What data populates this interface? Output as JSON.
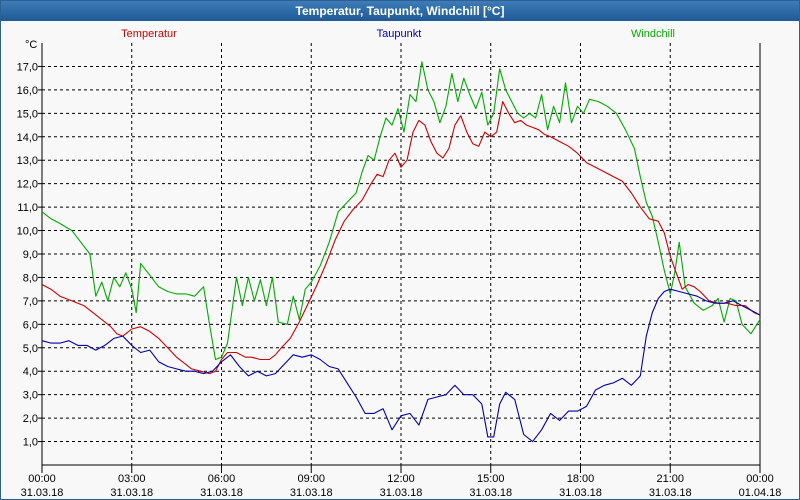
{
  "window": {
    "title": "Temperatur, Taupunkt, Windchill [°C]"
  },
  "chart_data": {
    "type": "line",
    "title": "Temperatur, Taupunkt, Windchill [°C]",
    "ylabel": "°C",
    "ylim": [
      0,
      18
    ],
    "y_ticks": [
      "1,0",
      "2,0",
      "3,0",
      "4,0",
      "5,0",
      "6,0",
      "7,0",
      "8,0",
      "9,0",
      "10,0",
      "11,0",
      "12,0",
      "13,0",
      "14,0",
      "15,0",
      "16,0",
      "17,0"
    ],
    "x_ticks": [
      {
        "time": "00:00",
        "date": "31.03.18"
      },
      {
        "time": "03:00",
        "date": "31.03.18"
      },
      {
        "time": "06:00",
        "date": "31.03.18"
      },
      {
        "time": "09:00",
        "date": "31.03.18"
      },
      {
        "time": "12:00",
        "date": "31.03.18"
      },
      {
        "time": "15:00",
        "date": "31.03.18"
      },
      {
        "time": "18:00",
        "date": "31.03.18"
      },
      {
        "time": "21:00",
        "date": "31.03.18"
      },
      {
        "time": "00:00",
        "date": "01.04.18"
      }
    ],
    "grid": true,
    "x_unit": "hours",
    "series": [
      {
        "name": "Temperatur",
        "color": "#cc0000",
        "points": [
          [
            0,
            7.7
          ],
          [
            0.3,
            7.5
          ],
          [
            0.6,
            7.2
          ],
          [
            1,
            7.0
          ],
          [
            1.4,
            6.8
          ],
          [
            1.7,
            6.5
          ],
          [
            2,
            6.2
          ],
          [
            2.3,
            5.9
          ],
          [
            2.5,
            5.6
          ],
          [
            2.7,
            5.5
          ],
          [
            3,
            5.8
          ],
          [
            3.3,
            5.9
          ],
          [
            3.6,
            5.7
          ],
          [
            3.9,
            5.4
          ],
          [
            4.2,
            5.0
          ],
          [
            4.5,
            4.6
          ],
          [
            4.8,
            4.3
          ],
          [
            5,
            4.1
          ],
          [
            5.3,
            4.0
          ],
          [
            5.6,
            3.9
          ],
          [
            5.8,
            4.0
          ],
          [
            6,
            4.5
          ],
          [
            6.2,
            4.8
          ],
          [
            6.5,
            4.8
          ],
          [
            6.8,
            4.6
          ],
          [
            7,
            4.6
          ],
          [
            7.3,
            4.5
          ],
          [
            7.6,
            4.5
          ],
          [
            7.8,
            4.7
          ],
          [
            8,
            5.0
          ],
          [
            8.3,
            5.4
          ],
          [
            8.6,
            6.1
          ],
          [
            8.9,
            6.9
          ],
          [
            9.2,
            7.7
          ],
          [
            9.5,
            8.6
          ],
          [
            9.8,
            9.6
          ],
          [
            10.1,
            10.4
          ],
          [
            10.4,
            10.9
          ],
          [
            10.7,
            11.3
          ],
          [
            11,
            12.0
          ],
          [
            11.2,
            12.4
          ],
          [
            11.4,
            12.3
          ],
          [
            11.6,
            13.0
          ],
          [
            11.8,
            13.3
          ],
          [
            12,
            12.7
          ],
          [
            12.2,
            13.0
          ],
          [
            12.4,
            14.2
          ],
          [
            12.6,
            14.7
          ],
          [
            12.8,
            14.5
          ],
          [
            13,
            13.8
          ],
          [
            13.2,
            13.3
          ],
          [
            13.4,
            13.1
          ],
          [
            13.6,
            13.5
          ],
          [
            13.8,
            14.5
          ],
          [
            14,
            14.9
          ],
          [
            14.2,
            14.2
          ],
          [
            14.4,
            13.7
          ],
          [
            14.6,
            13.6
          ],
          [
            14.8,
            14.2
          ],
          [
            15,
            14.0
          ],
          [
            15.2,
            14.2
          ],
          [
            15.4,
            15.5
          ],
          [
            15.6,
            15.0
          ],
          [
            15.8,
            14.6
          ],
          [
            16,
            14.7
          ],
          [
            16.2,
            14.5
          ],
          [
            16.4,
            14.4
          ],
          [
            16.6,
            14.3
          ],
          [
            16.8,
            14.1
          ],
          [
            17,
            14.0
          ],
          [
            17.3,
            13.8
          ],
          [
            17.6,
            13.6
          ],
          [
            17.9,
            13.3
          ],
          [
            18.2,
            12.9
          ],
          [
            18.5,
            12.7
          ],
          [
            18.8,
            12.5
          ],
          [
            19.1,
            12.3
          ],
          [
            19.4,
            12.1
          ],
          [
            19.7,
            11.6
          ],
          [
            20,
            11.0
          ],
          [
            20.3,
            10.5
          ],
          [
            20.6,
            10.4
          ],
          [
            20.8,
            9.9
          ],
          [
            21,
            8.9
          ],
          [
            21.2,
            8.2
          ],
          [
            21.4,
            7.5
          ],
          [
            21.6,
            7.7
          ],
          [
            21.8,
            7.6
          ],
          [
            22,
            7.4
          ],
          [
            22.3,
            7.0
          ],
          [
            22.6,
            6.9
          ],
          [
            22.9,
            6.9
          ],
          [
            23.2,
            6.8
          ],
          [
            23.5,
            6.8
          ],
          [
            23.8,
            6.5
          ],
          [
            24,
            6.4
          ]
        ]
      },
      {
        "name": "Taupunkt",
        "color": "#0000aa",
        "points": [
          [
            0,
            5.3
          ],
          [
            0.3,
            5.2
          ],
          [
            0.6,
            5.2
          ],
          [
            0.9,
            5.3
          ],
          [
            1.2,
            5.1
          ],
          [
            1.5,
            5.1
          ],
          [
            1.8,
            4.9
          ],
          [
            2.1,
            5.1
          ],
          [
            2.4,
            5.4
          ],
          [
            2.7,
            5.5
          ],
          [
            3,
            5.1
          ],
          [
            3.3,
            4.8
          ],
          [
            3.6,
            4.9
          ],
          [
            3.9,
            4.4
          ],
          [
            4.2,
            4.2
          ],
          [
            4.5,
            4.1
          ],
          [
            4.8,
            4.0
          ],
          [
            5.1,
            4.0
          ],
          [
            5.4,
            3.9
          ],
          [
            5.7,
            4.0
          ],
          [
            6,
            4.4
          ],
          [
            6.3,
            4.7
          ],
          [
            6.6,
            4.2
          ],
          [
            6.9,
            3.8
          ],
          [
            7.2,
            4.0
          ],
          [
            7.5,
            3.8
          ],
          [
            7.8,
            3.9
          ],
          [
            8.1,
            4.3
          ],
          [
            8.4,
            4.7
          ],
          [
            8.7,
            4.6
          ],
          [
            9,
            4.7
          ],
          [
            9.3,
            4.5
          ],
          [
            9.6,
            4.2
          ],
          [
            9.9,
            4.1
          ],
          [
            10.2,
            3.5
          ],
          [
            10.5,
            2.9
          ],
          [
            10.8,
            2.2
          ],
          [
            11.1,
            2.2
          ],
          [
            11.4,
            2.4
          ],
          [
            11.7,
            1.5
          ],
          [
            12,
            2.1
          ],
          [
            12.3,
            2.2
          ],
          [
            12.6,
            1.7
          ],
          [
            12.9,
            2.8
          ],
          [
            13.2,
            2.9
          ],
          [
            13.5,
            3.0
          ],
          [
            13.8,
            3.4
          ],
          [
            14.1,
            3.0
          ],
          [
            14.4,
            3.0
          ],
          [
            14.7,
            2.6
          ],
          [
            14.9,
            1.2
          ],
          [
            15.1,
            1.2
          ],
          [
            15.3,
            2.6
          ],
          [
            15.5,
            3.1
          ],
          [
            15.8,
            2.8
          ],
          [
            16.1,
            1.3
          ],
          [
            16.4,
            1.0
          ],
          [
            16.7,
            1.5
          ],
          [
            17,
            2.2
          ],
          [
            17.3,
            1.9
          ],
          [
            17.6,
            2.3
          ],
          [
            17.9,
            2.3
          ],
          [
            18.2,
            2.5
          ],
          [
            18.5,
            3.2
          ],
          [
            18.8,
            3.4
          ],
          [
            19.1,
            3.5
          ],
          [
            19.4,
            3.7
          ],
          [
            19.7,
            3.4
          ],
          [
            20,
            3.8
          ],
          [
            20.2,
            5.5
          ],
          [
            20.4,
            6.5
          ],
          [
            20.6,
            7.1
          ],
          [
            20.8,
            7.4
          ],
          [
            21,
            7.5
          ],
          [
            21.3,
            7.4
          ],
          [
            21.6,
            7.3
          ],
          [
            21.9,
            7.2
          ],
          [
            22.2,
            7.0
          ],
          [
            22.5,
            6.9
          ],
          [
            22.8,
            6.9
          ],
          [
            23.1,
            7.0
          ],
          [
            23.4,
            6.8
          ],
          [
            23.7,
            6.6
          ],
          [
            24,
            6.4
          ]
        ]
      },
      {
        "name": "Windchill",
        "color": "#00aa00",
        "points": [
          [
            0,
            10.8
          ],
          [
            0.3,
            10.5
          ],
          [
            0.6,
            10.3
          ],
          [
            1,
            10.0
          ],
          [
            1.3,
            9.5
          ],
          [
            1.6,
            9.0
          ],
          [
            1.8,
            7.2
          ],
          [
            2.0,
            7.8
          ],
          [
            2.2,
            7.0
          ],
          [
            2.4,
            8.0
          ],
          [
            2.6,
            7.6
          ],
          [
            2.8,
            8.2
          ],
          [
            3,
            7.5
          ],
          [
            3.15,
            6.5
          ],
          [
            3.3,
            8.6
          ],
          [
            3.6,
            8.1
          ],
          [
            3.9,
            7.6
          ],
          [
            4.2,
            7.4
          ],
          [
            4.5,
            7.3
          ],
          [
            4.8,
            7.3
          ],
          [
            5.1,
            7.2
          ],
          [
            5.4,
            7.6
          ],
          [
            5.6,
            6.0
          ],
          [
            5.8,
            4.5
          ],
          [
            6,
            4.6
          ],
          [
            6.2,
            5.2
          ],
          [
            6.5,
            8.0
          ],
          [
            6.7,
            6.8
          ],
          [
            6.9,
            8.0
          ],
          [
            7.1,
            7.0
          ],
          [
            7.3,
            7.9
          ],
          [
            7.5,
            6.8
          ],
          [
            7.7,
            8.0
          ],
          [
            7.9,
            6.1
          ],
          [
            8.2,
            6.0
          ],
          [
            8.4,
            7.2
          ],
          [
            8.6,
            6.2
          ],
          [
            8.8,
            7.5
          ],
          [
            9,
            7.8
          ],
          [
            9.3,
            8.5
          ],
          [
            9.6,
            9.5
          ],
          [
            9.9,
            10.8
          ],
          [
            10.2,
            11.2
          ],
          [
            10.5,
            11.6
          ],
          [
            10.7,
            12.5
          ],
          [
            10.9,
            13.2
          ],
          [
            11.1,
            13.0
          ],
          [
            11.3,
            14.0
          ],
          [
            11.5,
            14.8
          ],
          [
            11.7,
            14.5
          ],
          [
            11.9,
            15.2
          ],
          [
            12.1,
            14.2
          ],
          [
            12.3,
            15.8
          ],
          [
            12.5,
            15.5
          ],
          [
            12.7,
            17.2
          ],
          [
            12.9,
            16.0
          ],
          [
            13.1,
            15.5
          ],
          [
            13.3,
            14.6
          ],
          [
            13.5,
            15.3
          ],
          [
            13.7,
            16.7
          ],
          [
            13.9,
            15.5
          ],
          [
            14.1,
            16.5
          ],
          [
            14.3,
            15.8
          ],
          [
            14.5,
            15.2
          ],
          [
            14.7,
            15.9
          ],
          [
            14.9,
            14.5
          ],
          [
            15.1,
            15.0
          ],
          [
            15.3,
            16.9
          ],
          [
            15.5,
            16.0
          ],
          [
            15.7,
            15.5
          ],
          [
            15.9,
            15.0
          ],
          [
            16.1,
            14.8
          ],
          [
            16.3,
            15.0
          ],
          [
            16.5,
            14.8
          ],
          [
            16.7,
            15.8
          ],
          [
            16.9,
            14.3
          ],
          [
            17.1,
            15.3
          ],
          [
            17.3,
            14.6
          ],
          [
            17.5,
            16.3
          ],
          [
            17.7,
            14.6
          ],
          [
            17.9,
            15.3
          ],
          [
            18.1,
            15.0
          ],
          [
            18.3,
            15.6
          ],
          [
            18.6,
            15.5
          ],
          [
            18.9,
            15.3
          ],
          [
            19.2,
            15.0
          ],
          [
            19.5,
            14.3
          ],
          [
            19.8,
            13.5
          ],
          [
            20,
            12.3
          ],
          [
            20.2,
            11.2
          ],
          [
            20.4,
            10.6
          ],
          [
            20.6,
            9.5
          ],
          [
            20.8,
            8.3
          ],
          [
            21,
            7.3
          ],
          [
            21.15,
            8.2
          ],
          [
            21.3,
            9.5
          ],
          [
            21.5,
            7.6
          ],
          [
            21.8,
            6.9
          ],
          [
            22.1,
            6.6
          ],
          [
            22.4,
            6.8
          ],
          [
            22.6,
            7.1
          ],
          [
            22.8,
            6.1
          ],
          [
            23,
            7.1
          ],
          [
            23.2,
            7.0
          ],
          [
            23.4,
            6.0
          ],
          [
            23.7,
            5.6
          ],
          [
            24,
            6.2
          ]
        ]
      }
    ]
  }
}
